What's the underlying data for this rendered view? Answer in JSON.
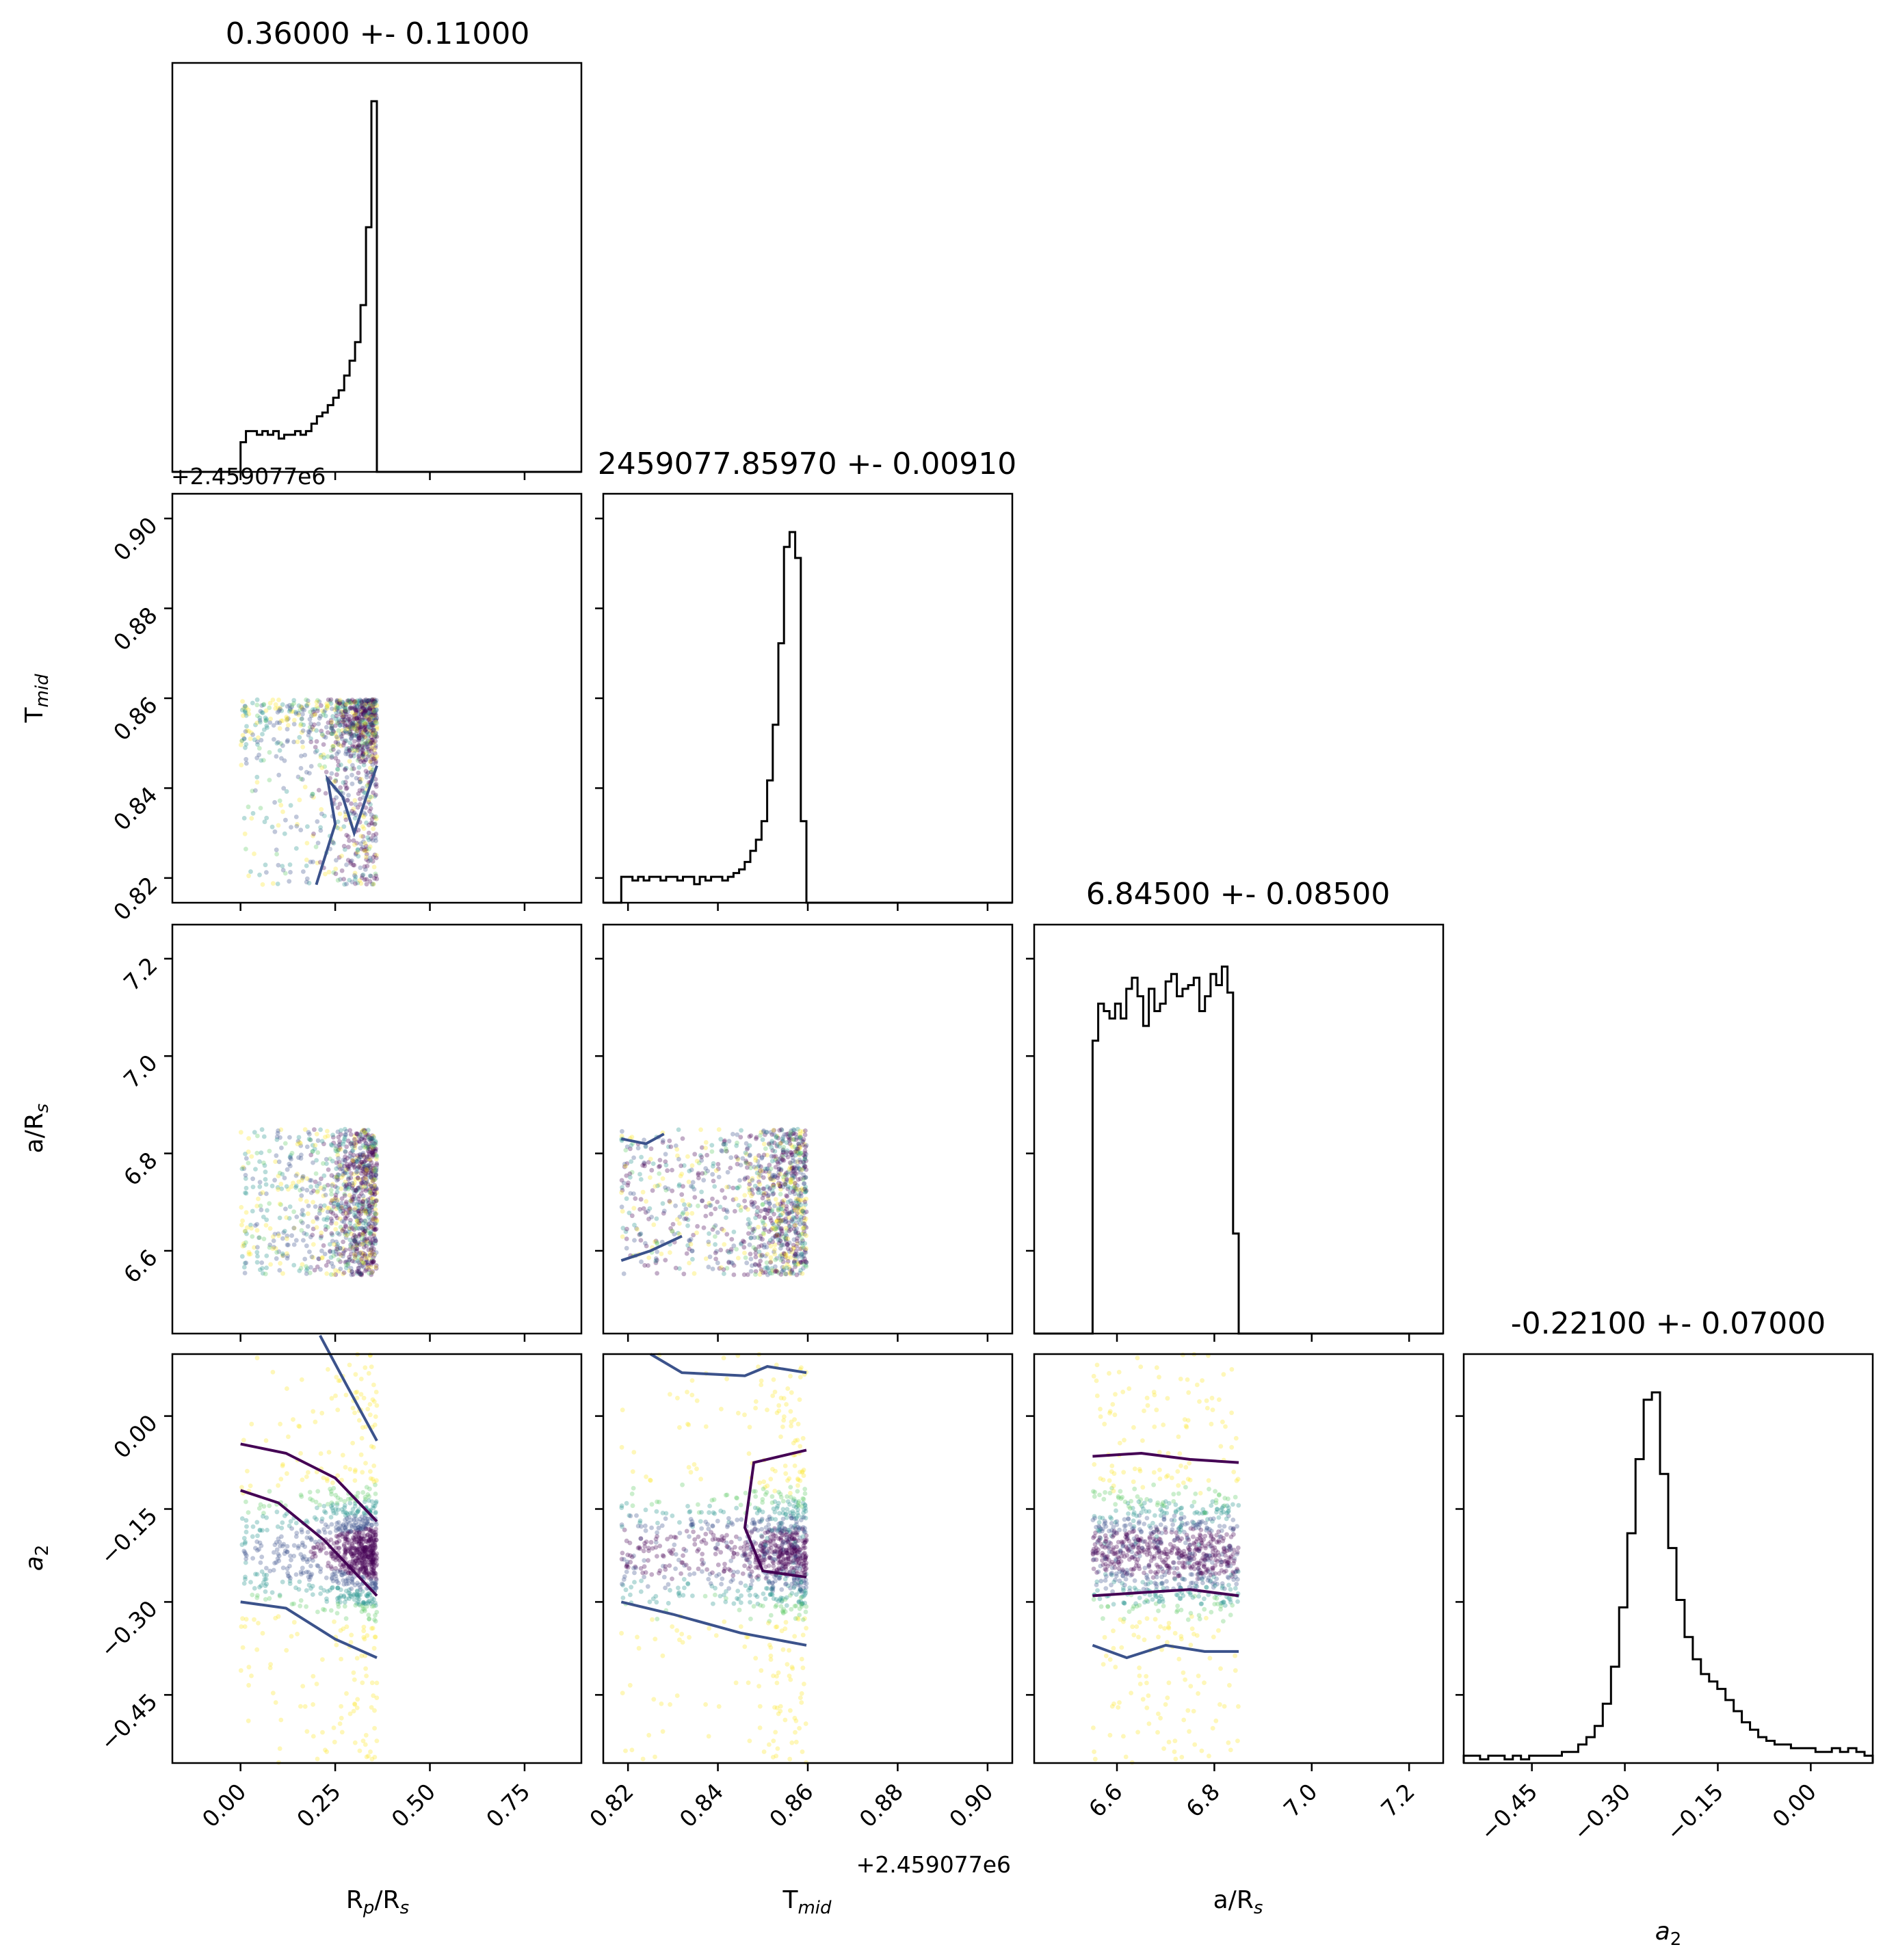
{
  "chart_data": {
    "type": "corner",
    "colormap": [
      "#440154",
      "#3b528b",
      "#21918c",
      "#5ec962",
      "#fde725"
    ],
    "contour_colors": [
      "#440154",
      "#3b528b"
    ],
    "parameters": [
      {
        "name": "Rp/Rs",
        "xlabel": {
          "base": "R",
          "sub": "p",
          "rest": "/R",
          "sub2": "s"
        },
        "title": "0.36000 +- 0.11000",
        "range": [
          -0.18,
          0.9
        ],
        "sample_range": [
          0.0,
          0.36
        ],
        "ticks": [
          0.0,
          0.25,
          0.5,
          0.75
        ],
        "tick_labels": [
          "0.00",
          "0.25",
          "0.50",
          "0.75"
        ],
        "offset_label": "",
        "hist": [
          0.08,
          0.11,
          0.11,
          0.1,
          0.11,
          0.1,
          0.11,
          0.09,
          0.1,
          0.1,
          0.11,
          0.1,
          0.11,
          0.13,
          0.15,
          0.16,
          0.18,
          0.2,
          0.22,
          0.26,
          0.3,
          0.35,
          0.45,
          0.66,
          1.0
        ]
      },
      {
        "name": "Tmid",
        "xlabel": {
          "base": "T",
          "sub": "mid",
          "rest": "",
          "sub2": ""
        },
        "title": "2459077.85970 +- 0.00910",
        "range": [
          0.8145,
          0.9055
        ],
        "sample_range": [
          0.8185,
          0.8597
        ],
        "ticks": [
          0.82,
          0.84,
          0.86,
          0.88,
          0.9
        ],
        "tick_labels": [
          "0.82",
          "0.84",
          "0.86",
          "0.88",
          "0.90"
        ],
        "offset_label": "+2.459077e6",
        "hist": [
          0.07,
          0.07,
          0.06,
          0.07,
          0.06,
          0.07,
          0.07,
          0.06,
          0.07,
          0.07,
          0.06,
          0.07,
          0.07,
          0.05,
          0.07,
          0.06,
          0.07,
          0.07,
          0.06,
          0.07,
          0.08,
          0.09,
          0.11,
          0.14,
          0.17,
          0.22,
          0.33,
          0.48,
          0.7,
          0.96,
          1.0,
          0.93,
          0.22
        ]
      },
      {
        "name": "a/Rs",
        "xlabel": {
          "base": "a/R",
          "sub": "s",
          "rest": "",
          "sub2": ""
        },
        "title": "6.84500 +- 0.08500",
        "range": [
          6.43,
          7.27
        ],
        "sample_range": [
          6.55,
          6.85
        ],
        "ticks": [
          6.6,
          6.8,
          7.0,
          7.2
        ],
        "tick_labels": [
          "6.6",
          "6.8",
          "7.0",
          "7.2"
        ],
        "offset_label": "",
        "hist": [
          0.79,
          0.89,
          0.87,
          0.85,
          0.89,
          0.85,
          0.93,
          0.96,
          0.91,
          0.83,
          0.93,
          0.87,
          0.89,
          0.95,
          0.97,
          0.91,
          0.93,
          0.94,
          0.96,
          0.87,
          0.91,
          0.97,
          0.94,
          0.99,
          0.92,
          0.27
        ]
      },
      {
        "name": "a2",
        "xlabel": {
          "base": "a",
          "sub": "2",
          "rest": "",
          "sub2": ""
        },
        "title": "-0.22100 +- 0.07000",
        "range": [
          -0.56,
          0.1
        ],
        "sample_range": [
          -0.56,
          0.1
        ],
        "ticks": [
          -0.45,
          -0.3,
          -0.15,
          0.0
        ],
        "tick_labels": [
          "−0.45",
          "−0.30",
          "−0.15",
          "0.00"
        ],
        "offset_label": "",
        "hist": [
          0.02,
          0.02,
          0.01,
          0.02,
          0.02,
          0.01,
          0.02,
          0.01,
          0.02,
          0.02,
          0.02,
          0.02,
          0.03,
          0.03,
          0.05,
          0.07,
          0.1,
          0.16,
          0.26,
          0.42,
          0.62,
          0.82,
          0.98,
          1.0,
          0.78,
          0.58,
          0.44,
          0.34,
          0.28,
          0.24,
          0.22,
          0.2,
          0.17,
          0.14,
          0.11,
          0.09,
          0.07,
          0.06,
          0.05,
          0.05,
          0.04,
          0.04,
          0.04,
          0.03,
          0.03,
          0.04,
          0.03,
          0.04,
          0.03,
          0.02
        ]
      }
    ],
    "row_tick_labels": {
      "Tmid": [
        "0.82",
        "0.84",
        "0.86",
        "0.88",
        "0.90"
      ],
      "a/Rs": [
        "6.6",
        "6.8",
        "7.0",
        "7.2"
      ],
      "a2": [
        "−0.45",
        "−0.30",
        "−0.15",
        "0.00"
      ]
    },
    "top_offset_label": "+2.459077e6"
  }
}
